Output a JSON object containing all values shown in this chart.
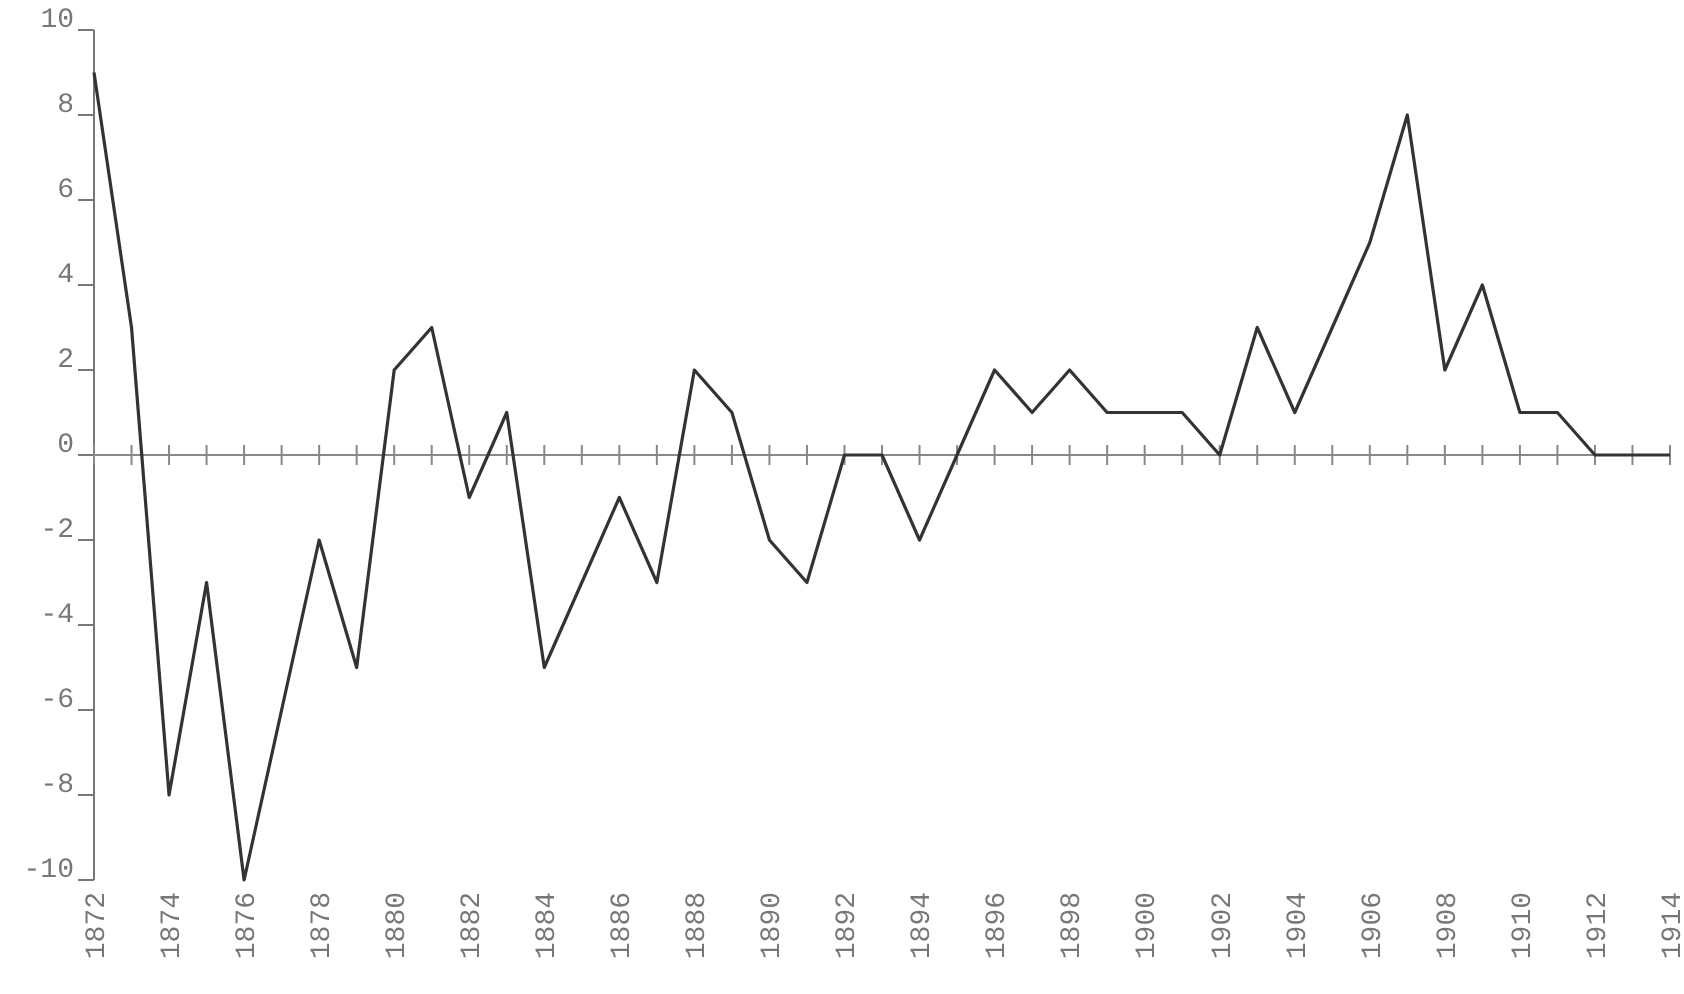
{
  "chart_data": {
    "type": "line",
    "x": [
      1872,
      1873,
      1874,
      1875,
      1876,
      1877,
      1878,
      1879,
      1880,
      1881,
      1882,
      1883,
      1884,
      1885,
      1886,
      1887,
      1888,
      1889,
      1890,
      1891,
      1892,
      1893,
      1894,
      1895,
      1896,
      1897,
      1898,
      1899,
      1900,
      1901,
      1902,
      1903,
      1904,
      1905,
      1906,
      1907,
      1908,
      1909,
      1910,
      1911,
      1912,
      1913,
      1914
    ],
    "series": [
      {
        "color": "#333333",
        "values": [
          9,
          3,
          -8,
          -3,
          -10,
          -6,
          -2,
          -5,
          2,
          3,
          -1,
          1,
          -5,
          -3,
          -1,
          -3,
          2,
          1,
          -2,
          -3,
          0,
          0,
          -2,
          0,
          2,
          1,
          2,
          1,
          1,
          1,
          0,
          3,
          1,
          3,
          5,
          8,
          2,
          4,
          1,
          1,
          0,
          0,
          0
        ]
      }
    ],
    "xlim": [
      1872,
      1914
    ],
    "ylim": [
      -10,
      10
    ],
    "xticks": [
      1872,
      {
        "value": 1873,
        "label": null
      },
      1874,
      {
        "value": 1875,
        "label": null
      },
      1876,
      {
        "value": 1877,
        "label": null
      },
      1878,
      {
        "value": 1879,
        "label": null
      },
      1880,
      {
        "value": 1881,
        "label": null
      },
      1882,
      {
        "value": 1883,
        "label": null
      },
      1884,
      {
        "value": 1885,
        "label": null
      },
      1886,
      {
        "value": 1887,
        "label": null
      },
      1888,
      {
        "value": 1889,
        "label": null
      },
      1890,
      {
        "value": 1891,
        "label": null
      },
      1892,
      {
        "value": 1893,
        "label": null
      },
      1894,
      {
        "value": 1895,
        "label": null
      },
      1896,
      {
        "value": 1897,
        "label": null
      },
      1898,
      {
        "value": 1899,
        "label": null
      },
      1900,
      {
        "value": 1901,
        "label": null
      },
      1902,
      {
        "value": 1903,
        "label": null
      },
      1904,
      {
        "value": 1905,
        "label": null
      },
      1906,
      {
        "value": 1907,
        "label": null
      },
      1908,
      {
        "value": 1909,
        "label": null
      },
      1910,
      {
        "value": 1911,
        "label": null
      },
      1912,
      {
        "value": 1913,
        "label": null
      },
      1914
    ],
    "yticks": [
      -10,
      -8,
      -6,
      -4,
      -2,
      0,
      2,
      4,
      6,
      8,
      10
    ],
    "marker": "none",
    "line_style": "solid"
  }
}
